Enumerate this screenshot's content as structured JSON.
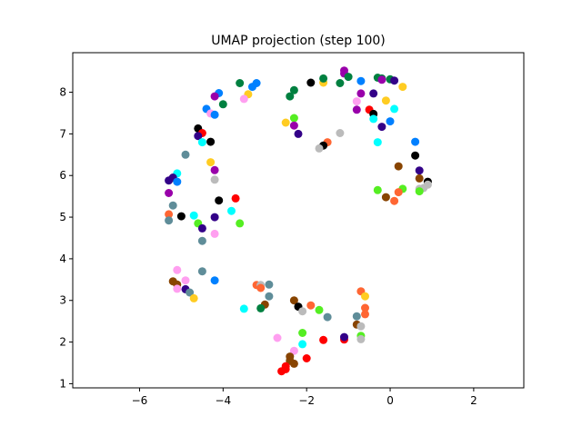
{
  "chart_data": {
    "type": "scatter",
    "title": "UMAP projection (step 100)",
    "xlabel": "",
    "ylabel": "",
    "xlim": [
      -7.6,
      3.2
    ],
    "ylim": [
      0.9,
      8.95
    ],
    "xticks": [
      -6,
      -4,
      -2,
      0,
      2
    ],
    "yticks": [
      1,
      2,
      3,
      4,
      5,
      6,
      7,
      8
    ],
    "xtick_labels": [
      "−6",
      "−4",
      "−2",
      "0",
      "2"
    ],
    "ytick_labels": [
      "1",
      "2",
      "3",
      "4",
      "5",
      "6",
      "7",
      "8"
    ],
    "grid": false,
    "legend": false,
    "points": [
      {
        "x": -3.6,
        "y": 8.22,
        "c": "#008040"
      },
      {
        "x": -3.3,
        "y": 8.13,
        "c": "#0080ff"
      },
      {
        "x": -3.2,
        "y": 8.22,
        "c": "#0080ff"
      },
      {
        "x": -3.4,
        "y": 7.95,
        "c": "#ffcc22"
      },
      {
        "x": -3.5,
        "y": 7.84,
        "c": "#ff9ff0"
      },
      {
        "x": -4.1,
        "y": 7.98,
        "c": "#0080ff"
      },
      {
        "x": -4.2,
        "y": 7.9,
        "c": "#9900aa"
      },
      {
        "x": -4.0,
        "y": 7.71,
        "c": "#008040"
      },
      {
        "x": -4.4,
        "y": 7.6,
        "c": "#0080ff"
      },
      {
        "x": -4.3,
        "y": 7.49,
        "c": "#ff9ff0"
      },
      {
        "x": -4.2,
        "y": 7.46,
        "c": "#0080ff"
      },
      {
        "x": -4.6,
        "y": 7.13,
        "c": "#000000"
      },
      {
        "x": -4.5,
        "y": 7.02,
        "c": "#ff0000"
      },
      {
        "x": -4.6,
        "y": 6.95,
        "c": "#330088"
      },
      {
        "x": -4.5,
        "y": 6.8,
        "c": "#00ffff"
      },
      {
        "x": -4.3,
        "y": 6.81,
        "c": "#000000"
      },
      {
        "x": -4.9,
        "y": 6.5,
        "c": "#5f8d99"
      },
      {
        "x": -4.3,
        "y": 6.32,
        "c": "#ffcc22"
      },
      {
        "x": -4.2,
        "y": 6.13,
        "c": "#9900aa"
      },
      {
        "x": -5.1,
        "y": 6.05,
        "c": "#00ffff"
      },
      {
        "x": -5.2,
        "y": 5.95,
        "c": "#330088"
      },
      {
        "x": -5.3,
        "y": 5.88,
        "c": "#330088"
      },
      {
        "x": -5.1,
        "y": 5.85,
        "c": "#0080ff"
      },
      {
        "x": -4.2,
        "y": 5.9,
        "c": "#bbbbbb"
      },
      {
        "x": -5.3,
        "y": 5.58,
        "c": "#9900aa"
      },
      {
        "x": -4.1,
        "y": 5.4,
        "c": "#000000"
      },
      {
        "x": -3.7,
        "y": 5.45,
        "c": "#ff0000"
      },
      {
        "x": -5.2,
        "y": 5.28,
        "c": "#5f8d99"
      },
      {
        "x": -3.8,
        "y": 5.15,
        "c": "#00ffff"
      },
      {
        "x": -5.3,
        "y": 5.07,
        "c": "#ff6633"
      },
      {
        "x": -5.0,
        "y": 5.02,
        "c": "#000000"
      },
      {
        "x": -4.7,
        "y": 5.04,
        "c": "#00ffff"
      },
      {
        "x": -4.2,
        "y": 5.0,
        "c": "#330088"
      },
      {
        "x": -5.3,
        "y": 4.92,
        "c": "#5f8d99"
      },
      {
        "x": -4.6,
        "y": 4.85,
        "c": "#55ee22"
      },
      {
        "x": -3.6,
        "y": 4.85,
        "c": "#55ee22"
      },
      {
        "x": -4.5,
        "y": 4.73,
        "c": "#330088"
      },
      {
        "x": -4.2,
        "y": 4.6,
        "c": "#ff9ff0"
      },
      {
        "x": -4.5,
        "y": 4.43,
        "c": "#5f8d99"
      },
      {
        "x": -5.1,
        "y": 3.73,
        "c": "#ff9ff0"
      },
      {
        "x": -4.5,
        "y": 3.7,
        "c": "#5f8d99"
      },
      {
        "x": -4.2,
        "y": 3.48,
        "c": "#0080ff"
      },
      {
        "x": -5.2,
        "y": 3.46,
        "c": "#884400"
      },
      {
        "x": -5.1,
        "y": 3.38,
        "c": "#884400"
      },
      {
        "x": -4.9,
        "y": 3.48,
        "c": "#ff9ff0"
      },
      {
        "x": -5.1,
        "y": 3.28,
        "c": "#ff9ff0"
      },
      {
        "x": -4.9,
        "y": 3.27,
        "c": "#330088"
      },
      {
        "x": -4.8,
        "y": 3.19,
        "c": "#5f8d99"
      },
      {
        "x": -4.7,
        "y": 3.05,
        "c": "#ffcc22"
      },
      {
        "x": -3.5,
        "y": 2.8,
        "c": "#00ffff"
      },
      {
        "x": -3.2,
        "y": 3.37,
        "c": "#ff6633"
      },
      {
        "x": -3.1,
        "y": 3.37,
        "c": "#bbbbbb"
      },
      {
        "x": -3.1,
        "y": 3.3,
        "c": "#ff6633"
      },
      {
        "x": -2.9,
        "y": 3.38,
        "c": "#5f8d99"
      },
      {
        "x": -2.9,
        "y": 3.1,
        "c": "#5f8d99"
      },
      {
        "x": -3.0,
        "y": 2.9,
        "c": "#884400"
      },
      {
        "x": -3.1,
        "y": 2.81,
        "c": "#008040"
      },
      {
        "x": -2.3,
        "y": 3.0,
        "c": "#884400"
      },
      {
        "x": -2.2,
        "y": 2.85,
        "c": "#000000"
      },
      {
        "x": -1.9,
        "y": 2.88,
        "c": "#ff6633"
      },
      {
        "x": -2.1,
        "y": 2.74,
        "c": "#bbbbbb"
      },
      {
        "x": -1.7,
        "y": 2.77,
        "c": "#55ee22"
      },
      {
        "x": -1.5,
        "y": 2.6,
        "c": "#5f8d99"
      },
      {
        "x": -2.1,
        "y": 2.22,
        "c": "#55ee22"
      },
      {
        "x": -2.7,
        "y": 2.1,
        "c": "#ff9ff0"
      },
      {
        "x": -2.1,
        "y": 1.95,
        "c": "#00ffff"
      },
      {
        "x": -2.3,
        "y": 1.79,
        "c": "#ff9ff0"
      },
      {
        "x": -2.4,
        "y": 1.65,
        "c": "#884400"
      },
      {
        "x": -2.4,
        "y": 1.55,
        "c": "#884400"
      },
      {
        "x": -2.3,
        "y": 1.48,
        "c": "#884400"
      },
      {
        "x": -2.5,
        "y": 1.42,
        "c": "#ff0000"
      },
      {
        "x": -2.6,
        "y": 1.3,
        "c": "#ff0000"
      },
      {
        "x": -2.5,
        "y": 1.35,
        "c": "#ff0000"
      },
      {
        "x": -2.0,
        "y": 1.61,
        "c": "#ff0000"
      },
      {
        "x": -1.6,
        "y": 2.05,
        "c": "#ff0000"
      },
      {
        "x": -1.1,
        "y": 2.06,
        "c": "#ff0000"
      },
      {
        "x": -1.1,
        "y": 2.12,
        "c": "#330088"
      },
      {
        "x": -0.8,
        "y": 2.42,
        "c": "#884400"
      },
      {
        "x": -0.7,
        "y": 2.38,
        "c": "#bbbbbb"
      },
      {
        "x": -0.7,
        "y": 2.15,
        "c": "#55ee22"
      },
      {
        "x": -0.7,
        "y": 2.07,
        "c": "#bbbbbb"
      },
      {
        "x": -0.8,
        "y": 2.62,
        "c": "#5f8d99"
      },
      {
        "x": -0.6,
        "y": 2.67,
        "c": "#ff6633"
      },
      {
        "x": -0.6,
        "y": 2.82,
        "c": "#ff6633"
      },
      {
        "x": -0.7,
        "y": 3.22,
        "c": "#ff6633"
      },
      {
        "x": -0.6,
        "y": 3.1,
        "c": "#ffcc22"
      },
      {
        "x": -2.3,
        "y": 8.05,
        "c": "#008040"
      },
      {
        "x": -2.4,
        "y": 7.9,
        "c": "#008040"
      },
      {
        "x": -1.9,
        "y": 8.23,
        "c": "#000000"
      },
      {
        "x": -1.6,
        "y": 8.23,
        "c": "#ffcc22"
      },
      {
        "x": -1.6,
        "y": 8.33,
        "c": "#008040"
      },
      {
        "x": -1.2,
        "y": 8.22,
        "c": "#008040"
      },
      {
        "x": -1.1,
        "y": 8.45,
        "c": "#9900aa"
      },
      {
        "x": -1.1,
        "y": 8.52,
        "c": "#9900aa"
      },
      {
        "x": -1.0,
        "y": 8.37,
        "c": "#008040"
      },
      {
        "x": -0.7,
        "y": 8.27,
        "c": "#0080ff"
      },
      {
        "x": -0.3,
        "y": 8.35,
        "c": "#008040"
      },
      {
        "x": -0.2,
        "y": 8.33,
        "c": "#008040"
      },
      {
        "x": -0.2,
        "y": 8.3,
        "c": "#9900aa"
      },
      {
        "x": 0.0,
        "y": 8.31,
        "c": "#008040"
      },
      {
        "x": 0.1,
        "y": 8.28,
        "c": "#330088"
      },
      {
        "x": 0.3,
        "y": 8.13,
        "c": "#ffcc22"
      },
      {
        "x": -0.7,
        "y": 7.97,
        "c": "#9900aa"
      },
      {
        "x": -0.4,
        "y": 7.97,
        "c": "#330088"
      },
      {
        "x": -0.8,
        "y": 7.78,
        "c": "#ff9ff0"
      },
      {
        "x": -0.1,
        "y": 7.8,
        "c": "#ffcc22"
      },
      {
        "x": 0.1,
        "y": 7.6,
        "c": "#00ffff"
      },
      {
        "x": -0.8,
        "y": 7.58,
        "c": "#9900aa"
      },
      {
        "x": -0.5,
        "y": 7.58,
        "c": "#ff0000"
      },
      {
        "x": -0.4,
        "y": 7.48,
        "c": "#000000"
      },
      {
        "x": -0.4,
        "y": 7.36,
        "c": "#00ffff"
      },
      {
        "x": 0.0,
        "y": 7.3,
        "c": "#0080ff"
      },
      {
        "x": -0.2,
        "y": 7.17,
        "c": "#330088"
      },
      {
        "x": -2.5,
        "y": 7.27,
        "c": "#ffcc22"
      },
      {
        "x": -2.3,
        "y": 7.38,
        "c": "#55ee22"
      },
      {
        "x": -2.3,
        "y": 7.2,
        "c": "#9900aa"
      },
      {
        "x": -2.2,
        "y": 7.0,
        "c": "#330088"
      },
      {
        "x": -1.2,
        "y": 7.02,
        "c": "#bbbbbb"
      },
      {
        "x": -1.5,
        "y": 6.8,
        "c": "#ff6633"
      },
      {
        "x": -1.6,
        "y": 6.72,
        "c": "#000000"
      },
      {
        "x": -1.7,
        "y": 6.65,
        "c": "#bbbbbb"
      },
      {
        "x": -0.3,
        "y": 6.8,
        "c": "#00ffff"
      },
      {
        "x": 0.6,
        "y": 6.81,
        "c": "#0080ff"
      },
      {
        "x": 0.6,
        "y": 6.48,
        "c": "#000000"
      },
      {
        "x": 0.2,
        "y": 6.22,
        "c": "#884400"
      },
      {
        "x": 0.7,
        "y": 6.12,
        "c": "#330088"
      },
      {
        "x": 0.7,
        "y": 5.93,
        "c": "#884400"
      },
      {
        "x": 0.9,
        "y": 5.85,
        "c": "#000000"
      },
      {
        "x": 0.9,
        "y": 5.78,
        "c": "#bbbbbb"
      },
      {
        "x": 0.8,
        "y": 5.7,
        "c": "#bbbbbb"
      },
      {
        "x": 0.7,
        "y": 5.68,
        "c": "#bbbbbb"
      },
      {
        "x": 0.3,
        "y": 5.68,
        "c": "#55ee22"
      },
      {
        "x": 0.7,
        "y": 5.62,
        "c": "#55ee22"
      },
      {
        "x": -0.3,
        "y": 5.65,
        "c": "#55ee22"
      },
      {
        "x": 0.2,
        "y": 5.6,
        "c": "#ff6633"
      },
      {
        "x": -0.1,
        "y": 5.48,
        "c": "#884400"
      },
      {
        "x": 0.1,
        "y": 5.39,
        "c": "#ff6633"
      }
    ]
  }
}
